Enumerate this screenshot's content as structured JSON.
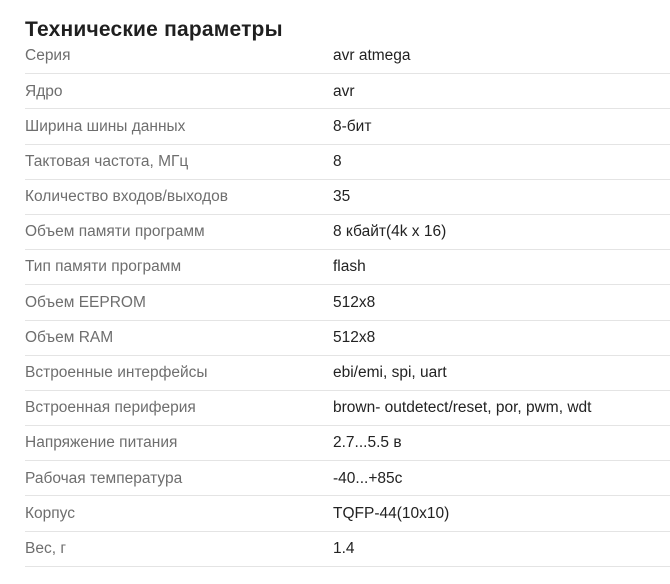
{
  "title": "Технические параметры",
  "colors": {
    "title_text": "#1f1f1f",
    "label_text": "#6e6e6e",
    "value_text": "#222222",
    "divider": "#e4e4e4",
    "background": "#ffffff"
  },
  "rows": [
    {
      "label": "Серия",
      "value": "avr atmega"
    },
    {
      "label": "Ядро",
      "value": "avr"
    },
    {
      "label": "Ширина шины данных",
      "value": "8-бит"
    },
    {
      "label": "Тактовая частота, МГц",
      "value": "8"
    },
    {
      "label": "Количество входов/выходов",
      "value": "35"
    },
    {
      "label": "Объем памяти программ",
      "value": "8 кбайт(4k x 16)"
    },
    {
      "label": "Тип памяти программ",
      "value": "flash"
    },
    {
      "label": "Объем EEPROM",
      "value": "512x8"
    },
    {
      "label": "Объем RAM",
      "value": "512x8"
    },
    {
      "label": "Встроенные интерфейсы",
      "value": "ebi/emi, spi, uart"
    },
    {
      "label": "Встроенная периферия",
      "value": "brown- outdetect/reset, por, pwm, wdt"
    },
    {
      "label": "Напряжение питания",
      "value": "2.7...5.5 в"
    },
    {
      "label": "Рабочая температура",
      "value": "-40...+85c"
    },
    {
      "label": "Корпус",
      "value": "TQFP-44(10x10)"
    },
    {
      "label": "Вес, г",
      "value": "1.4"
    }
  ]
}
